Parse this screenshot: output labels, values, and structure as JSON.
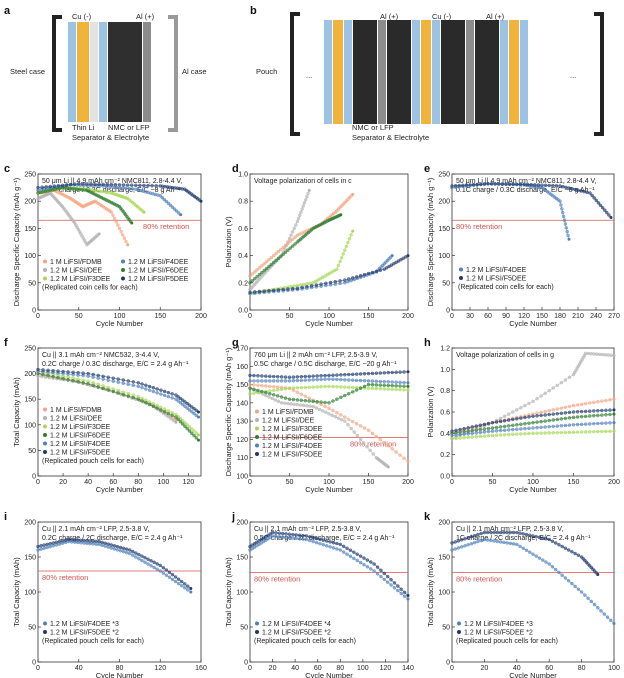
{
  "schematics": {
    "a": {
      "label": "a",
      "left_label": "Steel case",
      "right_label": "Al case",
      "cu_label": "Cu (-)",
      "al_label": "Al (+)",
      "thin_li": "Thin Li",
      "cathode": "NMC or LFP",
      "sep": "Separator & Electrolyte"
    },
    "b": {
      "label": "b",
      "left_label": "Pouch",
      "al_label_1": "Al (+)",
      "cu_label": "Cu (-)",
      "al_label_2": "Al (+)",
      "cathode": "NMC or LFP",
      "sep": "Separator & Electrolyte",
      "ellipsis": "..."
    },
    "colors": {
      "cu": "#f0b43c",
      "al": "#8c8c8c",
      "sep": "#9cc3e4",
      "cathode": "#2a2a2a",
      "li": "#d9d9d9"
    }
  },
  "colors": {
    "FDMB": "#f4a582",
    "DEE": "#b3b3b3",
    "F3DEE": "#a6d854",
    "F4DEE": "#4f81bd",
    "F6DEE": "#2e7d32",
    "F5DEE": "#1f3a6e",
    "retention": "#d9534f"
  },
  "retention_label": "80% retention",
  "chart_data": [
    {
      "id": "c",
      "type": "scatter",
      "note_lines": [
        "50 μm Li || 4.9 mAh cm⁻² NMC811, 2.8-4.4 V,",
        "0.2C charge / 0.3C discharge, E/C ~8 g Ah⁻¹"
      ],
      "xlabel": "Cycle Number",
      "ylabel": "Discharge Specific Capacity (mAh g⁻¹)",
      "xlim": [
        0,
        200
      ],
      "ylim": [
        0,
        250
      ],
      "xticks": [
        0,
        50,
        100,
        150,
        200
      ],
      "yticks": [
        0,
        50,
        100,
        150,
        200,
        250
      ],
      "retention_y": 165,
      "legend": [
        "1 M LiFSI/FDMB",
        "1.2 M LiFSI/DEE",
        "1.2 M LiFSI/F3DEE",
        "1.2 M LiFSI/F4DEE",
        "1.2 M LiFSI/F6DEE",
        "1.2 M LiFSI/F5DEE"
      ],
      "legend_note": "(Replicated coin cells for each)",
      "series": [
        {
          "key": "FDMB",
          "x": [
            0,
            20,
            40,
            55,
            70,
            90,
            110
          ],
          "y": [
            215,
            220,
            205,
            190,
            200,
            180,
            120
          ]
        },
        {
          "key": "DEE",
          "x": [
            0,
            15,
            30,
            45,
            60,
            75
          ],
          "y": [
            205,
            215,
            190,
            160,
            120,
            140
          ]
        },
        {
          "key": "F3DEE",
          "x": [
            0,
            30,
            60,
            90,
            110,
            130
          ],
          "y": [
            215,
            225,
            222,
            215,
            205,
            180
          ]
        },
        {
          "key": "F4DEE",
          "x": [
            0,
            40,
            80,
            120,
            150,
            175
          ],
          "y": [
            220,
            230,
            228,
            222,
            210,
            175
          ]
        },
        {
          "key": "F6DEE",
          "x": [
            0,
            30,
            60,
            80,
            100,
            115
          ],
          "y": [
            215,
            225,
            220,
            205,
            190,
            160
          ]
        },
        {
          "key": "F5DEE",
          "x": [
            0,
            50,
            100,
            150,
            180,
            200
          ],
          "y": [
            225,
            232,
            230,
            228,
            222,
            200
          ]
        }
      ]
    },
    {
      "id": "d",
      "type": "scatter",
      "note_lines": [
        "Voltage polarization of cells in c"
      ],
      "xlabel": "Cycle Number",
      "ylabel": "Polarization (V)",
      "xlim": [
        0,
        200
      ],
      "ylim": [
        0.0,
        1.0
      ],
      "xticks": [
        0,
        50,
        100,
        150,
        200
      ],
      "yticks": [
        0.0,
        0.2,
        0.4,
        0.6,
        0.8,
        1.0
      ],
      "series": [
        {
          "key": "DEE",
          "x": [
            0,
            20,
            40,
            60,
            75
          ],
          "y": [
            0.15,
            0.28,
            0.4,
            0.65,
            0.88
          ]
        },
        {
          "key": "FDMB",
          "x": [
            0,
            30,
            60,
            90,
            110,
            130
          ],
          "y": [
            0.25,
            0.4,
            0.55,
            0.63,
            0.73,
            0.85
          ]
        },
        {
          "key": "F6DEE",
          "x": [
            0,
            30,
            60,
            80,
            100,
            115
          ],
          "y": [
            0.2,
            0.35,
            0.5,
            0.6,
            0.66,
            0.7
          ]
        },
        {
          "key": "F3DEE",
          "x": [
            0,
            40,
            80,
            110,
            130
          ],
          "y": [
            0.12,
            0.16,
            0.2,
            0.3,
            0.58
          ]
        },
        {
          "key": "F4DEE",
          "x": [
            0,
            60,
            120,
            160,
            180
          ],
          "y": [
            0.12,
            0.15,
            0.2,
            0.28,
            0.4
          ]
        },
        {
          "key": "F5DEE",
          "x": [
            0,
            60,
            120,
            170,
            200
          ],
          "y": [
            0.13,
            0.16,
            0.22,
            0.3,
            0.4
          ]
        }
      ]
    },
    {
      "id": "e",
      "type": "scatter",
      "note_lines": [
        "50 μm Li || 4.9 mAh cm⁻² NMC811, 2.8-4.4 V,",
        "0.1C charge / 0.3C discharge, E/C ~8 g Ah⁻¹"
      ],
      "xlabel": "Cycle Number",
      "ylabel": "Discharge Specific Capacity (mAh g⁻¹)",
      "xlim": [
        0,
        270
      ],
      "ylim": [
        0,
        250
      ],
      "xticks": [
        0,
        30,
        60,
        90,
        120,
        150,
        180,
        210,
        240,
        270
      ],
      "yticks": [
        0,
        50,
        100,
        150,
        200,
        250
      ],
      "retention_y": 165,
      "legend": [
        "1.2 M LiFSI/F4DEE",
        "1.2 M LiFSI/F5DEE"
      ],
      "legend_note": "(Replicated coin cells for each)",
      "series": [
        {
          "key": "F4DEE",
          "x": [
            0,
            60,
            120,
            150,
            180,
            195
          ],
          "y": [
            225,
            232,
            230,
            225,
            200,
            130
          ]
        },
        {
          "key": "F5DEE",
          "x": [
            0,
            60,
            120,
            180,
            230,
            265
          ],
          "y": [
            228,
            232,
            231,
            228,
            215,
            170
          ]
        }
      ]
    },
    {
      "id": "f",
      "type": "scatter",
      "note_lines": [
        "Cu || 3.1 mAh cm⁻² NMC532, 3-4.4 V,",
        "0.2C charge / 0.3C discharge, E/C = 2.4 g Ah⁻¹"
      ],
      "xlabel": "Cycle Number",
      "ylabel": "Total Capacity (mAh)",
      "xlim": [
        0,
        130
      ],
      "ylim": [
        0,
        250
      ],
      "xticks": [
        0,
        20,
        40,
        60,
        80,
        100,
        120
      ],
      "yticks": [
        0,
        50,
        100,
        150,
        200,
        250
      ],
      "legend": [
        "1 M LiFSI/FDMB",
        "1.2 M LiFSI/DEE",
        "1.2 M LiFSI/F3DEE",
        "1.2 M LiFSI/F6DEE",
        "1.2 M LiFSI/F4DEE",
        "1.2 M LiFSI/F5DEE"
      ],
      "legend_note": "(Replicated pouch cells for each)",
      "series": [
        {
          "key": "FDMB",
          "x": [
            0,
            30,
            60,
            90,
            110
          ],
          "y": [
            200,
            185,
            165,
            140,
            110
          ]
        },
        {
          "key": "DEE",
          "x": [
            0,
            30,
            60,
            90,
            110
          ],
          "y": [
            195,
            185,
            165,
            140,
            105
          ]
        },
        {
          "key": "F3DEE",
          "x": [
            0,
            40,
            80,
            110,
            128
          ],
          "y": [
            205,
            185,
            155,
            120,
            80
          ]
        },
        {
          "key": "F6DEE",
          "x": [
            0,
            40,
            80,
            110,
            128
          ],
          "y": [
            200,
            180,
            150,
            115,
            70
          ]
        },
        {
          "key": "F4DEE",
          "x": [
            0,
            40,
            80,
            110,
            128
          ],
          "y": [
            205,
            195,
            175,
            150,
            115
          ]
        },
        {
          "key": "F5DEE",
          "x": [
            0,
            40,
            80,
            110,
            128
          ],
          "y": [
            208,
            200,
            182,
            158,
            125
          ]
        }
      ]
    },
    {
      "id": "g",
      "type": "scatter",
      "note_lines": [
        "760 μm Li || 2 mAh cm⁻² LFP, 2.5-3.9 V,",
        "0.5C charge / 0.5C discharge, E/C ~20 g Ah⁻¹"
      ],
      "xlabel": "Cycle Number",
      "ylabel": "Discharge Specific Capacity (mAh g⁻¹)",
      "xlim": [
        0,
        200
      ],
      "ylim": [
        100,
        170
      ],
      "xticks": [
        0,
        50,
        100,
        150,
        200
      ],
      "yticks": [
        100,
        110,
        120,
        130,
        140,
        150,
        160,
        170
      ],
      "retention_y": 121,
      "legend": [
        "1 M LiFSI/FDMB",
        "1.2 M LiFSI/DEE",
        "1.2 M LiFSI/F3DEE",
        "1.2 M LiFSI/F6DEE",
        "1.2 M LiFSI/F4DEE",
        "1.2 M LiFSI/F5DEE"
      ],
      "series": [
        {
          "key": "FDMB",
          "x": [
            0,
            50,
            100,
            150,
            200
          ],
          "y": [
            150,
            148,
            137,
            125,
            108
          ]
        },
        {
          "key": "DEE",
          "x": [
            0,
            40,
            80,
            120,
            160,
            175
          ],
          "y": [
            148,
            140,
            138,
            130,
            110,
            105
          ]
        },
        {
          "key": "F3DEE",
          "x": [
            0,
            50,
            100,
            150,
            200
          ],
          "y": [
            145,
            148,
            149,
            148,
            147
          ]
        },
        {
          "key": "F6DEE",
          "x": [
            0,
            50,
            100,
            150,
            200
          ],
          "y": [
            148,
            142,
            140,
            150,
            149
          ]
        },
        {
          "key": "F4DEE",
          "x": [
            0,
            50,
            100,
            150,
            200
          ],
          "y": [
            152,
            152,
            153,
            152,
            151
          ]
        },
        {
          "key": "F5DEE",
          "x": [
            0,
            50,
            100,
            150,
            200
          ],
          "y": [
            155,
            154,
            155,
            156,
            157
          ]
        }
      ]
    },
    {
      "id": "h",
      "type": "scatter",
      "note_lines": [
        "Voltage polarization of cells in g"
      ],
      "xlabel": "Cycle Number",
      "ylabel": "Polarization (V)",
      "xlim": [
        0,
        200
      ],
      "ylim": [
        0.0,
        1.2
      ],
      "xticks": [
        0,
        50,
        100,
        150,
        200
      ],
      "yticks": [
        0.0,
        0.2,
        0.4,
        0.6,
        0.8,
        1.0,
        1.2
      ],
      "series": [
        {
          "key": "DEE",
          "x": [
            0,
            50,
            100,
            150,
            165,
            200
          ],
          "y": [
            0.35,
            0.5,
            0.7,
            0.95,
            1.15,
            1.13
          ]
        },
        {
          "key": "FDMB",
          "x": [
            0,
            50,
            100,
            150,
            200
          ],
          "y": [
            0.4,
            0.5,
            0.58,
            0.66,
            0.72
          ]
        },
        {
          "key": "F6DEE",
          "x": [
            0,
            50,
            100,
            150,
            200
          ],
          "y": [
            0.4,
            0.45,
            0.5,
            0.55,
            0.58
          ]
        },
        {
          "key": "F4DEE",
          "x": [
            0,
            50,
            100,
            150,
            200
          ],
          "y": [
            0.38,
            0.42,
            0.45,
            0.48,
            0.5
          ]
        },
        {
          "key": "F3DEE",
          "x": [
            0,
            50,
            100,
            150,
            200
          ],
          "y": [
            0.35,
            0.38,
            0.4,
            0.41,
            0.42
          ]
        },
        {
          "key": "F5DEE",
          "x": [
            0,
            50,
            100,
            150,
            200
          ],
          "y": [
            0.42,
            0.5,
            0.56,
            0.6,
            0.62
          ]
        }
      ]
    },
    {
      "id": "i",
      "type": "scatter",
      "note_lines": [
        "Cu || 2.1 mAh cm⁻² LFP, 2.5-3.8 V,",
        "0.2C charge / 2C discharge, E/C = 2.4 g Ah⁻¹"
      ],
      "xlabel": "Cycle Number",
      "ylabel": "Total Capacity (mAh)",
      "xlim": [
        0,
        160
      ],
      "ylim": [
        0,
        200
      ],
      "xticks": [
        0,
        40,
        80,
        120,
        160
      ],
      "yticks": [
        0,
        50,
        100,
        150,
        200
      ],
      "retention_y": 130,
      "legend": [
        "1.2 M LiFSI/F4DEE *3",
        "1.2 M LiFSI/F5DEE *2"
      ],
      "legend_note": "(Replicated pouch cells for each)",
      "series": [
        {
          "key": "F4DEE",
          "x": [
            0,
            30,
            60,
            90,
            120,
            150
          ],
          "y": [
            160,
            172,
            168,
            155,
            130,
            100
          ]
        },
        {
          "key": "F5DEE",
          "x": [
            0,
            30,
            60,
            90,
            120,
            150
          ],
          "y": [
            165,
            175,
            172,
            160,
            138,
            105
          ]
        }
      ]
    },
    {
      "id": "j",
      "type": "scatter",
      "note_lines": [
        "Cu || 2.1 mAh cm⁻² LFP, 2.5-3.8 V,",
        "0.5C charge / 2C discharge, E/C = 2.4 g Ah⁻¹"
      ],
      "xlabel": "Cycle Number",
      "ylabel": "Total Capacity (mAh)",
      "xlim": [
        0,
        140
      ],
      "ylim": [
        0,
        200
      ],
      "xticks": [
        0,
        20,
        40,
        60,
        80,
        100,
        120,
        140
      ],
      "yticks": [
        0,
        50,
        100,
        150,
        200
      ],
      "retention_y": 128,
      "legend": [
        "1.2 M LiFSI/F4DEE *4",
        "1.2 M LiFSI/F5DEE *2"
      ],
      "legend_note": "(Replicated pouch cells for each)",
      "series": [
        {
          "key": "F4DEE",
          "x": [
            0,
            20,
            50,
            80,
            110,
            140
          ],
          "y": [
            160,
            180,
            175,
            160,
            130,
            90
          ]
        },
        {
          "key": "F5DEE",
          "x": [
            0,
            20,
            50,
            80,
            110,
            140
          ],
          "y": [
            165,
            185,
            180,
            168,
            140,
            95
          ]
        }
      ]
    },
    {
      "id": "k",
      "type": "scatter",
      "note_lines": [
        "Cu || 2.1 mAh cm⁻² LFP, 2.5-3.8 V,",
        "1C charge / 2C discharge, E/C = 2.4 g Ah⁻¹"
      ],
      "xlabel": "Cycle Number",
      "ylabel": "Total Capacity (mAh)",
      "xlim": [
        0,
        100
      ],
      "ylim": [
        0,
        200
      ],
      "xticks": [
        0,
        20,
        40,
        60,
        80,
        100
      ],
      "yticks": [
        0,
        50,
        100,
        150,
        200
      ],
      "retention_y": 128,
      "legend": [
        "1.2 M LiFSI/F4DEE *3",
        "1.2 M LiFSI/F5DEE *2"
      ],
      "legend_note": "(Replicated pouch cells for each)",
      "series": [
        {
          "key": "F4DEE",
          "x": [
            0,
            20,
            40,
            60,
            80,
            100
          ],
          "y": [
            160,
            175,
            168,
            140,
            100,
            55
          ]
        },
        {
          "key": "F5DEE",
          "x": [
            0,
            20,
            40,
            60,
            80,
            90
          ],
          "y": [
            170,
            185,
            185,
            175,
            150,
            125
          ]
        }
      ]
    }
  ]
}
